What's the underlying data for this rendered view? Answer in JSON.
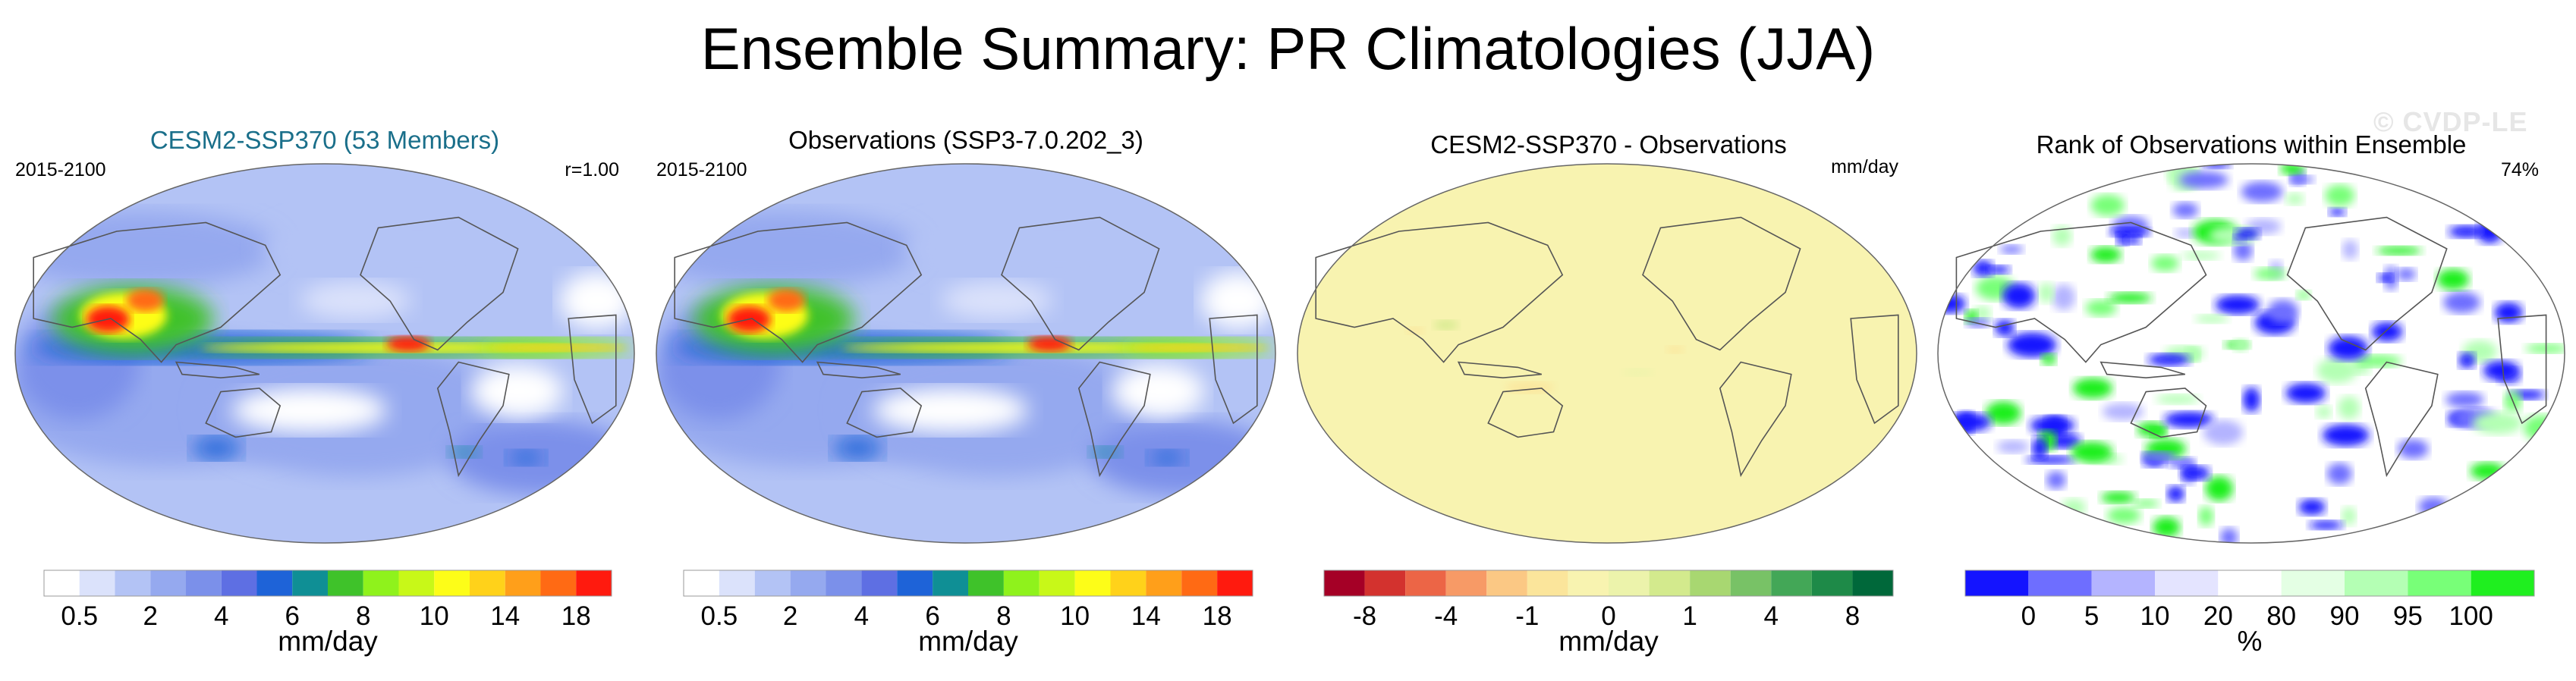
{
  "figure_title": "Ensemble Summary: PR Climatologies (JJA)",
  "watermark": "© CVDP-LE",
  "colors": {
    "ocean_bg": "#ffffff",
    "coast": "#555555",
    "title_model": "#1a6f8a",
    "title_default": "#000000"
  },
  "chart_data": [
    {
      "type": "heatmap",
      "title": "CESM2-SSP370 (53 Members)",
      "title_color": "#1a6f8a",
      "left_label": "2015-2100",
      "right_label": "r=1.00",
      "colorbar": {
        "label": "mm/day",
        "tick_labels": [
          "0.5",
          "2",
          "4",
          "6",
          "8",
          "10",
          "14",
          "18"
        ],
        "colors": [
          "#ffffff",
          "#dbe2fb",
          "#b3c3f5",
          "#95a9ef",
          "#7b90ea",
          "#5e6fe3",
          "#1e63d8",
          "#0f8f95",
          "#3fc22a",
          "#8ff21c",
          "#c8f818",
          "#fdfd18",
          "#ffd21a",
          "#ff9f1a",
          "#ff6a14",
          "#ff1a0e"
        ]
      },
      "field": "precip"
    },
    {
      "type": "heatmap",
      "title": "Observations (SSP3-7.0.202_3)",
      "title_color": "#000000",
      "left_label": "2015-2100",
      "right_label": "",
      "colorbar": {
        "label": "mm/day",
        "tick_labels": [
          "0.5",
          "2",
          "4",
          "6",
          "8",
          "10",
          "14",
          "18"
        ],
        "colors": [
          "#ffffff",
          "#dbe2fb",
          "#b3c3f5",
          "#95a9ef",
          "#7b90ea",
          "#5e6fe3",
          "#1e63d8",
          "#0f8f95",
          "#3fc22a",
          "#8ff21c",
          "#c8f818",
          "#fdfd18",
          "#ffd21a",
          "#ff9f1a",
          "#ff6a14",
          "#ff1a0e"
        ]
      },
      "field": "precip"
    },
    {
      "type": "heatmap",
      "title": "CESM2-SSP370 - Observations",
      "title_color": "#000000",
      "left_label": "",
      "right_label": "mm/day",
      "colorbar": {
        "label": "mm/day",
        "tick_labels": [
          "-8",
          "-4",
          "-1",
          "0",
          "1",
          "4",
          "8"
        ],
        "colors": [
          "#a50026",
          "#d3322e",
          "#ec6546",
          "#f79a66",
          "#fbc884",
          "#fbe59b",
          "#f8f3b0",
          "#ecf3ab",
          "#d3ea8d",
          "#a8d771",
          "#78c266",
          "#43a757",
          "#1e8a48",
          "#00683a"
        ]
      },
      "field": "diff"
    },
    {
      "type": "heatmap",
      "title": "Rank of Observations within Ensemble",
      "title_color": "#000000",
      "left_label": "",
      "right_label": "74%",
      "colorbar": {
        "label": "%",
        "tick_labels": [
          "0",
          "5",
          "10",
          "20",
          "80",
          "90",
          "95",
          "100"
        ],
        "colors": [
          "#1414ff",
          "#6e6eff",
          "#b4b4ff",
          "#e4e4ff",
          "#ffffff",
          "#e4ffe4",
          "#b4ffb4",
          "#78ff78",
          "#1fef1f"
        ]
      },
      "field": "rank"
    }
  ]
}
